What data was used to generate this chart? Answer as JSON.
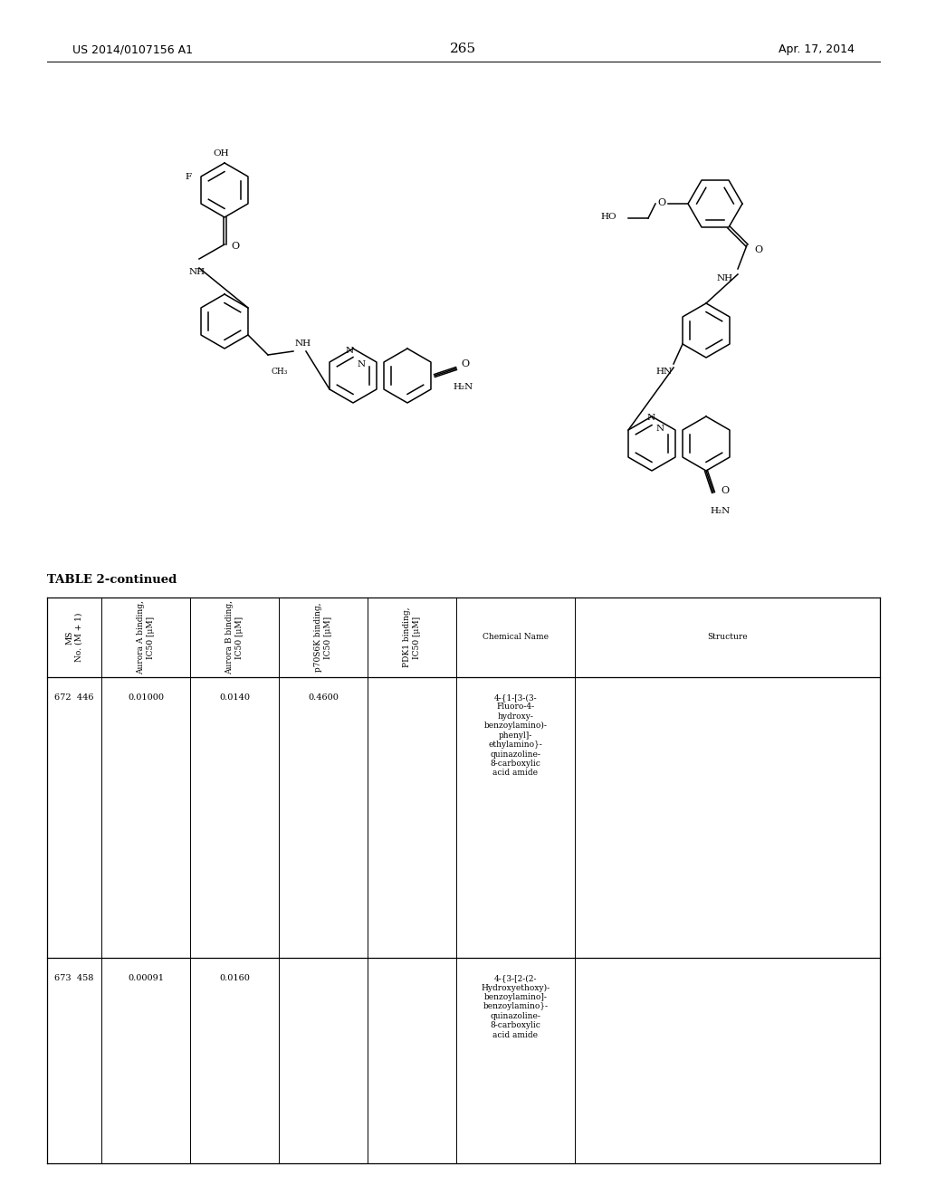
{
  "page_number": "265",
  "header_left": "US 2014/0107156 A1",
  "header_right": "Apr. 17, 2014",
  "table_title": "TABLE 2-continued",
  "col_headers": [
    "MS\nNo. (M + 1)",
    "Aurora A binding,\nIC50 [μM]",
    "Aurora B binding,\nIC50 [μM]",
    "p70S6K binding,\nIC50 [μM]",
    "PDK1 binding,\nIC50 [μM]",
    "Chemical Name",
    "Structure"
  ],
  "rows": [
    {
      "ms_no": "672  446",
      "aurora_a": "0.01000",
      "aurora_b": "0.0140",
      "p70s6k": "0.4600",
      "pdk1": "",
      "chem_name": "4-{1-[3-(3-\nFluoro-4-\nhydroxy-\nbenzoylamino)-\nphenyl]-\nethylamino}-\nquinazoline-\n8-carboxylic\nacid amide"
    },
    {
      "ms_no": "673  458",
      "aurora_a": "0.00091",
      "aurora_b": "0.0160",
      "p70s6k": "",
      "pdk1": "",
      "chem_name": "4-{3-[2-(2-\nHydroxyethoxy)-\nbenzoylamino]-\nbenzoylamino}-\nquinazoline-\n8-carboxylic\nacid amide"
    }
  ],
  "bg_color": "#ffffff",
  "text_color": "#000000"
}
